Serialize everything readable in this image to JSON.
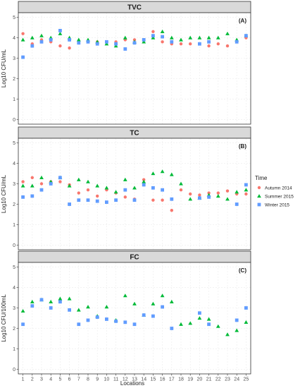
{
  "chart_data": [
    {
      "type": "scatter",
      "title": "TVC",
      "tag": "(A)",
      "ylabel": "Log10 CFU/mL",
      "xlabel": "",
      "ylim": [
        0,
        5
      ],
      "yticks": [
        0,
        1,
        2,
        3,
        4,
        5
      ],
      "x": [
        1,
        2,
        3,
        4,
        5,
        6,
        7,
        8,
        9,
        10,
        11,
        12,
        13,
        14,
        15,
        16,
        17,
        18,
        19,
        20,
        21,
        22,
        23,
        24,
        25
      ],
      "series": [
        {
          "name": "Autumn 2014",
          "values": [
            4.2,
            3.7,
            3.9,
            3.8,
            3.6,
            3.5,
            3.8,
            3.8,
            3.8,
            3.8,
            3.8,
            3.9,
            3.9,
            3.9,
            4.3,
            3.8,
            3.7,
            3.7,
            3.7,
            3.7,
            3.6,
            3.7,
            3.6,
            3.8,
            4.0
          ]
        },
        {
          "name": "Summer 2015",
          "values": [
            3.9,
            4.0,
            4.1,
            4.0,
            4.2,
            4.0,
            3.9,
            3.9,
            3.8,
            3.7,
            3.6,
            4.0,
            3.8,
            3.8,
            4.0,
            4.3,
            4.0,
            3.9,
            4.0,
            4.0,
            4.0,
            4.0,
            4.2,
            3.9,
            4.1
          ]
        },
        {
          "name": "Winter 2015",
          "values": [
            3.05,
            3.6,
            3.8,
            3.9,
            4.35,
            3.9,
            3.75,
            3.8,
            3.7,
            3.8,
            3.7,
            3.45,
            3.75,
            3.9,
            4.1,
            4.05,
            3.8,
            null,
            null,
            3.7,
            3.8,
            null,
            null,
            3.8,
            4.1
          ]
        }
      ]
    },
    {
      "type": "scatter",
      "title": "TC",
      "tag": "(B)",
      "ylabel": "Log10 CFU/mL",
      "xlabel": "",
      "ylim": [
        0,
        5
      ],
      "yticks": [
        0,
        1,
        2,
        3,
        4,
        5
      ],
      "x": [
        1,
        2,
        3,
        4,
        5,
        6,
        7,
        8,
        9,
        10,
        11,
        12,
        13,
        14,
        15,
        16,
        17,
        18,
        19,
        20,
        21,
        22,
        23,
        24,
        25
      ],
      "series": [
        {
          "name": "Autumn 2014",
          "values": [
            3.1,
            3.3,
            3.0,
            3.1,
            3.1,
            2.95,
            2.55,
            2.7,
            2.4,
            2.7,
            2.55,
            2.35,
            2.25,
            3.2,
            2.2,
            2.2,
            1.7,
            2.7,
            2.5,
            2.45,
            2.55,
            2.55,
            2.65,
            2.5,
            2.5
          ]
        },
        {
          "name": "Summer 2015",
          "values": [
            2.9,
            2.9,
            3.3,
            3.1,
            3.3,
            2.9,
            3.2,
            3.1,
            2.9,
            2.8,
            2.6,
            3.2,
            2.8,
            3.1,
            3.5,
            3.6,
            3.45,
            3.0,
            2.25,
            2.3,
            2.45,
            2.4,
            2.25,
            2.6,
            2.7
          ]
        },
        {
          "name": "Winter 2015",
          "values": [
            2.35,
            2.4,
            2.7,
            3.0,
            3.3,
            2.0,
            2.2,
            2.2,
            2.15,
            2.1,
            2.2,
            2.7,
            2.2,
            2.95,
            2.8,
            2.7,
            2.25,
            null,
            null,
            2.3,
            2.35,
            null,
            null,
            2.0,
            2.95
          ]
        }
      ]
    },
    {
      "type": "scatter",
      "title": "FC",
      "tag": "(C)",
      "ylabel": "Log10 CFU/100mL",
      "xlabel": "Locations",
      "ylim": [
        0,
        5
      ],
      "yticks": [
        0,
        1,
        2,
        3,
        4,
        5
      ],
      "x": [
        1,
        2,
        3,
        4,
        5,
        6,
        7,
        8,
        9,
        10,
        11,
        12,
        13,
        14,
        15,
        16,
        17,
        18,
        19,
        20,
        21,
        22,
        23,
        24,
        25
      ],
      "series": [
        {
          "name": "Summer 2015",
          "values": [
            2.85,
            3.3,
            3.4,
            3.3,
            3.45,
            3.45,
            2.9,
            3.05,
            2.6,
            3.05,
            2.4,
            3.6,
            3.2,
            2.65,
            3.2,
            3.6,
            3.3,
            2.2,
            2.25,
            2.5,
            2.45,
            2.1,
            1.7,
            1.9,
            2.3
          ]
        },
        {
          "name": "Winter 2015",
          "values": [
            2.2,
            3.1,
            3.4,
            3.0,
            3.3,
            2.9,
            2.2,
            2.4,
            2.55,
            2.45,
            2.35,
            2.3,
            2.2,
            2.65,
            2.6,
            3.05,
            2.0,
            null,
            null,
            2.75,
            2.2,
            null,
            null,
            2.4,
            3.0
          ]
        }
      ]
    }
  ],
  "legend": {
    "title": "Time",
    "position": "right",
    "items": [
      {
        "name": "Autumn 2014",
        "shape": "circle",
        "color": "#f8766d"
      },
      {
        "name": "Summer 2015",
        "shape": "triangle",
        "color": "#00ba38"
      },
      {
        "name": "Winter 2015",
        "shape": "square",
        "color": "#619cff"
      }
    ]
  },
  "colors": {
    "panel_bg": "#ffffff",
    "strip_bg": "#d9d9d9",
    "grid": "#ebebeb",
    "border": "#333333"
  }
}
